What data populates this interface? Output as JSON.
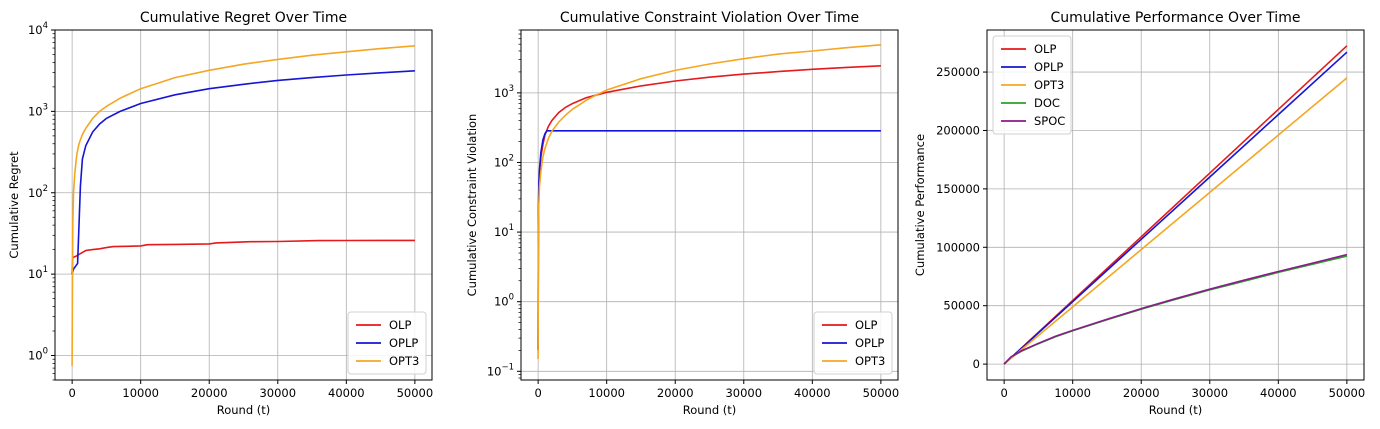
{
  "chart_data": [
    {
      "type": "line",
      "title": "Cumulative Regret Over Time",
      "xlabel": "Round (t)",
      "ylabel": "Cumulative Regret",
      "yscale": "log",
      "xlim": [
        -2500,
        52500
      ],
      "ylim": [
        0.5,
        10000
      ],
      "xticks": [
        0,
        10000,
        20000,
        30000,
        40000,
        50000
      ],
      "xtick_labels": [
        "0",
        "10000",
        "20000",
        "30000",
        "40000",
        "50000"
      ],
      "yticks": [
        1,
        10,
        100,
        1000,
        10000
      ],
      "ytick_labels": [
        [
          "10",
          "0"
        ],
        [
          "10",
          "1"
        ],
        [
          "10",
          "2"
        ],
        [
          "10",
          "3"
        ],
        [
          "10",
          "4"
        ]
      ],
      "grid": true,
      "legend_position": "lower right",
      "series": [
        {
          "name": "OLP",
          "color": "#e41a1c",
          "x": [
            0,
            100,
            500,
            1000,
            1500,
            2000,
            3000,
            4000,
            5000,
            6000,
            8000,
            10000,
            11000,
            15000,
            20000,
            21000,
            26000,
            30000,
            36000,
            40000,
            45000,
            50000
          ],
          "y": [
            10,
            16,
            16.5,
            17.5,
            18.5,
            19.5,
            20,
            20.5,
            21.2,
            21.8,
            22,
            22.2,
            23,
            23.2,
            23.5,
            24.2,
            25,
            25.2,
            25.8,
            25.9,
            26,
            26
          ]
        },
        {
          "name": "OPLP",
          "color": "#1515d6",
          "x": [
            0,
            200,
            500,
            800,
            1000,
            1200,
            1500,
            2000,
            3000,
            4000,
            5000,
            7000,
            10000,
            15000,
            20000,
            25000,
            30000,
            35000,
            40000,
            45000,
            50000
          ],
          "y": [
            10,
            11.5,
            12.5,
            13.5,
            40,
            120,
            260,
            380,
            560,
            700,
            820,
            1000,
            1250,
            1600,
            1900,
            2150,
            2400,
            2600,
            2800,
            2980,
            3150
          ]
        },
        {
          "name": "OPT3",
          "color": "#f5a623",
          "x": [
            0,
            50,
            100,
            200,
            400,
            700,
            1000,
            1500,
            2000,
            3000,
            4000,
            5000,
            7000,
            10000,
            15000,
            20000,
            25000,
            30000,
            35000,
            40000,
            45000,
            50000
          ],
          "y": [
            0.75,
            10,
            40,
            100,
            180,
            300,
            400,
            520,
            620,
            820,
            1000,
            1150,
            1450,
            1900,
            2600,
            3200,
            3800,
            4350,
            4900,
            5400,
            5900,
            6400
          ]
        }
      ]
    },
    {
      "type": "line",
      "title": "Cumulative Constraint Violation Over Time",
      "xlabel": "Round (t)",
      "ylabel": "Cumulative Constraint Violation",
      "yscale": "log",
      "xlim": [
        -2500,
        52500
      ],
      "ylim": [
        0.075,
        8000
      ],
      "xticks": [
        0,
        10000,
        20000,
        30000,
        40000,
        50000
      ],
      "xtick_labels": [
        "0",
        "10000",
        "20000",
        "30000",
        "40000",
        "50000"
      ],
      "yticks": [
        0.1,
        1,
        10,
        100,
        1000
      ],
      "ytick_labels": [
        [
          "10",
          "−1"
        ],
        [
          "10",
          "0"
        ],
        [
          "10",
          "1"
        ],
        [
          "10",
          "2"
        ],
        [
          "10",
          "3"
        ]
      ],
      "grid": true,
      "legend_position": "lower right",
      "series": [
        {
          "name": "OLP",
          "color": "#e41a1c",
          "x": [
            0,
            20,
            50,
            100,
            200,
            400,
            700,
            1000,
            1500,
            2000,
            3000,
            4000,
            5000,
            7000,
            10000,
            15000,
            20000,
            25000,
            30000,
            35000,
            40000,
            45000,
            50000
          ],
          "y": [
            0.2,
            5,
            20,
            40,
            70,
            120,
            180,
            250,
            330,
            400,
            520,
            620,
            700,
            850,
            1020,
            1260,
            1480,
            1680,
            1860,
            2020,
            2180,
            2320,
            2450
          ]
        },
        {
          "name": "OPLP",
          "color": "#1515d6",
          "x": [
            0,
            20,
            50,
            100,
            200,
            400,
            700,
            1000,
            1300,
            1500,
            2000,
            10000,
            20000,
            30000,
            40000,
            50000
          ],
          "y": [
            0.2,
            5,
            20,
            45,
            80,
            140,
            210,
            260,
            285,
            285,
            285,
            285,
            285,
            285,
            285,
            285
          ]
        },
        {
          "name": "OPT3",
          "color": "#f5a623",
          "x": [
            0,
            20,
            50,
            100,
            200,
            400,
            700,
            1000,
            1500,
            2000,
            3000,
            4000,
            5000,
            7000,
            8000,
            10000,
            15000,
            20000,
            25000,
            30000,
            35000,
            40000,
            45000,
            50000
          ],
          "y": [
            0.15,
            3,
            12,
            25,
            45,
            75,
            120,
            160,
            220,
            280,
            380,
            480,
            580,
            780,
            880,
            1100,
            1600,
            2100,
            2600,
            3100,
            3600,
            4000,
            4450,
            4900
          ]
        }
      ]
    },
    {
      "type": "line",
      "title": "Cumulative Performance Over Time",
      "xlabel": "Round (t)",
      "ylabel": "Cumulative Performance",
      "yscale": "linear",
      "xlim": [
        -2500,
        52500
      ],
      "ylim": [
        -13600,
        286000
      ],
      "xticks": [
        0,
        10000,
        20000,
        30000,
        40000,
        50000
      ],
      "xtick_labels": [
        "0",
        "10000",
        "20000",
        "30000",
        "40000",
        "50000"
      ],
      "yticks": [
        0,
        50000,
        100000,
        150000,
        200000,
        250000
      ],
      "ytick_labels": [
        "0",
        "50000",
        "100000",
        "150000",
        "200000",
        "250000"
      ],
      "grid": true,
      "legend_position": "upper left",
      "series": [
        {
          "name": "OLP",
          "color": "#e41a1c",
          "x": [
            0,
            10000,
            20000,
            30000,
            40000,
            50000
          ],
          "y": [
            0,
            54500,
            109000,
            163500,
            218000,
            272500
          ]
        },
        {
          "name": "OPLP",
          "color": "#1515d6",
          "x": [
            0,
            10000,
            20000,
            30000,
            40000,
            50000
          ],
          "y": [
            0,
            53400,
            106800,
            160200,
            213600,
            267000
          ]
        },
        {
          "name": "OPT3",
          "color": "#f5a623",
          "x": [
            0,
            10000,
            20000,
            30000,
            40000,
            50000
          ],
          "y": [
            0,
            49000,
            98000,
            147000,
            196000,
            245000
          ]
        },
        {
          "name": "DOC",
          "color": "#2ca02c",
          "x": [
            0,
            1000,
            2500,
            5000,
            7500,
            10000,
            15000,
            20000,
            25000,
            30000,
            35000,
            40000,
            45000,
            50000
          ],
          "y": [
            0,
            6000,
            11000,
            17500,
            23500,
            28500,
            38000,
            47000,
            55500,
            63500,
            71000,
            78500,
            85500,
            92500
          ]
        },
        {
          "name": "SPOC",
          "color": "#8b1a8b",
          "x": [
            0,
            1000,
            2500,
            5000,
            7500,
            10000,
            15000,
            20000,
            25000,
            30000,
            35000,
            40000,
            45000,
            50000
          ],
          "y": [
            0,
            6200,
            11300,
            17800,
            23800,
            28900,
            38400,
            47500,
            56000,
            64200,
            71800,
            79300,
            86500,
            93700
          ]
        }
      ]
    }
  ]
}
